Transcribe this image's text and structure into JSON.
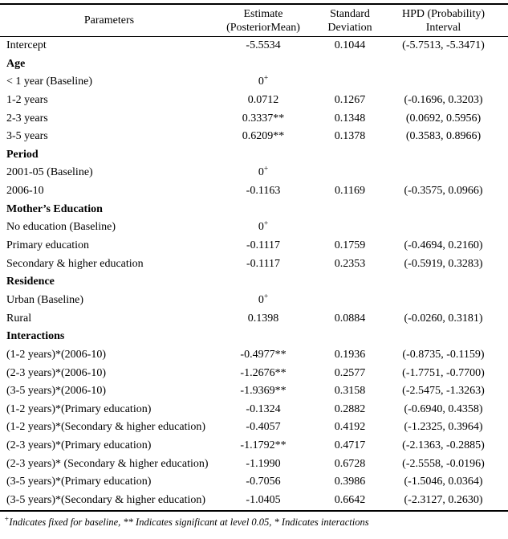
{
  "table": {
    "headers": {
      "parameters": "Parameters",
      "estimate": [
        "Estimate",
        "(PosteriorMean)"
      ],
      "std_dev": [
        "Standard",
        "Deviation"
      ],
      "hpd": [
        "HPD (Probability)",
        "Interval"
      ]
    },
    "rows": [
      {
        "type": "data",
        "param": "Intercept",
        "estimate": "-5.5534",
        "sd": "0.1044",
        "hpd": "(-5.7513, -5.3471)"
      },
      {
        "type": "section",
        "param": "Age",
        "estimate": "",
        "sd": "",
        "hpd": ""
      },
      {
        "type": "data",
        "param": "< 1 year (Baseline)",
        "estimate": "0",
        "estimate_sup": "+",
        "sd": "",
        "hpd": ""
      },
      {
        "type": "data",
        "param": "1-2 years",
        "estimate": "0.0712",
        "sd": "0.1267",
        "hpd": "(-0.1696, 0.3203)"
      },
      {
        "type": "data",
        "param": "2-3 years",
        "estimate": "0.3337**",
        "sd": "0.1348",
        "hpd": "(0.0692, 0.5956)"
      },
      {
        "type": "data",
        "param": "3-5 years",
        "estimate": "0.6209**",
        "sd": "0.1378",
        "hpd": "(0.3583, 0.8966)"
      },
      {
        "type": "section",
        "param": "Period",
        "estimate": "",
        "sd": "",
        "hpd": ""
      },
      {
        "type": "data",
        "param": "2001-05 (Baseline)",
        "estimate": "0",
        "estimate_sup": "+",
        "sd": "",
        "hpd": ""
      },
      {
        "type": "data",
        "param": "2006-10",
        "estimate": "-0.1163",
        "sd": "0.1169",
        "hpd": "(-0.3575, 0.0966)"
      },
      {
        "type": "section",
        "param": "Mother’s Education",
        "estimate": "",
        "sd": "",
        "hpd": ""
      },
      {
        "type": "data",
        "param": "No education (Baseline)",
        "estimate": "0",
        "estimate_sup": "+",
        "sd": "",
        "hpd": ""
      },
      {
        "type": "data",
        "param": "Primary education",
        "estimate": "-0.1117",
        "sd": "0.1759",
        "hpd": "(-0.4694, 0.2160)"
      },
      {
        "type": "data",
        "param": "Secondary & higher education",
        "estimate": "-0.1117",
        "sd": "0.2353",
        "hpd": "(-0.5919, 0.3283)"
      },
      {
        "type": "section",
        "param": "Residence",
        "estimate": "",
        "sd": "",
        "hpd": ""
      },
      {
        "type": "data",
        "param": "Urban (Baseline)",
        "estimate": "0",
        "estimate_sup": "+",
        "sd": "",
        "hpd": ""
      },
      {
        "type": "data",
        "param": "Rural",
        "estimate": "0.1398",
        "sd": "0.0884",
        "hpd": "(-0.0260, 0.3181)"
      },
      {
        "type": "section",
        "param": "Interactions",
        "estimate": "",
        "sd": "",
        "hpd": ""
      },
      {
        "type": "data",
        "param": "(1-2 years)*(2006-10)",
        "estimate": "-0.4977**",
        "sd": "0.1936",
        "hpd": "(-0.8735, -0.1159)"
      },
      {
        "type": "data",
        "param": "(2-3 years)*(2006-10)",
        "estimate": "-1.2676**",
        "sd": "0.2577",
        "hpd": "(-1.7751, -0.7700)"
      },
      {
        "type": "data",
        "param": "(3-5 years)*(2006-10)",
        "estimate": "-1.9369**",
        "sd": "0.3158",
        "hpd": "(-2.5475, -1.3263)"
      },
      {
        "type": "data",
        "param": "(1-2 years)*(Primary education)",
        "estimate": "-0.1324",
        "sd": "0.2882",
        "hpd": "(-0.6940, 0.4358)"
      },
      {
        "type": "data",
        "param": "(1-2 years)*(Secondary & higher education)",
        "estimate": "-0.4057",
        "sd": "0.4192",
        "hpd": "(-1.2325, 0.3964)"
      },
      {
        "type": "data",
        "param": "(2-3 years)*(Primary education)",
        "estimate": "-1.1792**",
        "sd": "0.4717",
        "hpd": "(-2.1363, -0.2885)"
      },
      {
        "type": "data",
        "param": "(2-3 years)* (Secondary & higher education)",
        "estimate": "-1.1990",
        "sd": "0.6728",
        "hpd": "(-2.5558, -0.0196)"
      },
      {
        "type": "data",
        "param": "(3-5 years)*(Primary education)",
        "estimate": "-0.7056",
        "sd": "0.3986",
        "hpd": "(-1.5046, 0.0364)"
      },
      {
        "type": "data",
        "param": "(3-5 years)*(Secondary & higher education)",
        "estimate": "-1.0405",
        "sd": "0.6642",
        "hpd": "(-2.3127, 0.2630)"
      }
    ]
  },
  "footnote": {
    "sup": "+",
    "text": "Indicates fixed for baseline, ** Indicates significant at level 0.05, * Indicates interactions"
  },
  "colors": {
    "text": "#000000",
    "background": "#ffffff",
    "rule": "#000000"
  }
}
